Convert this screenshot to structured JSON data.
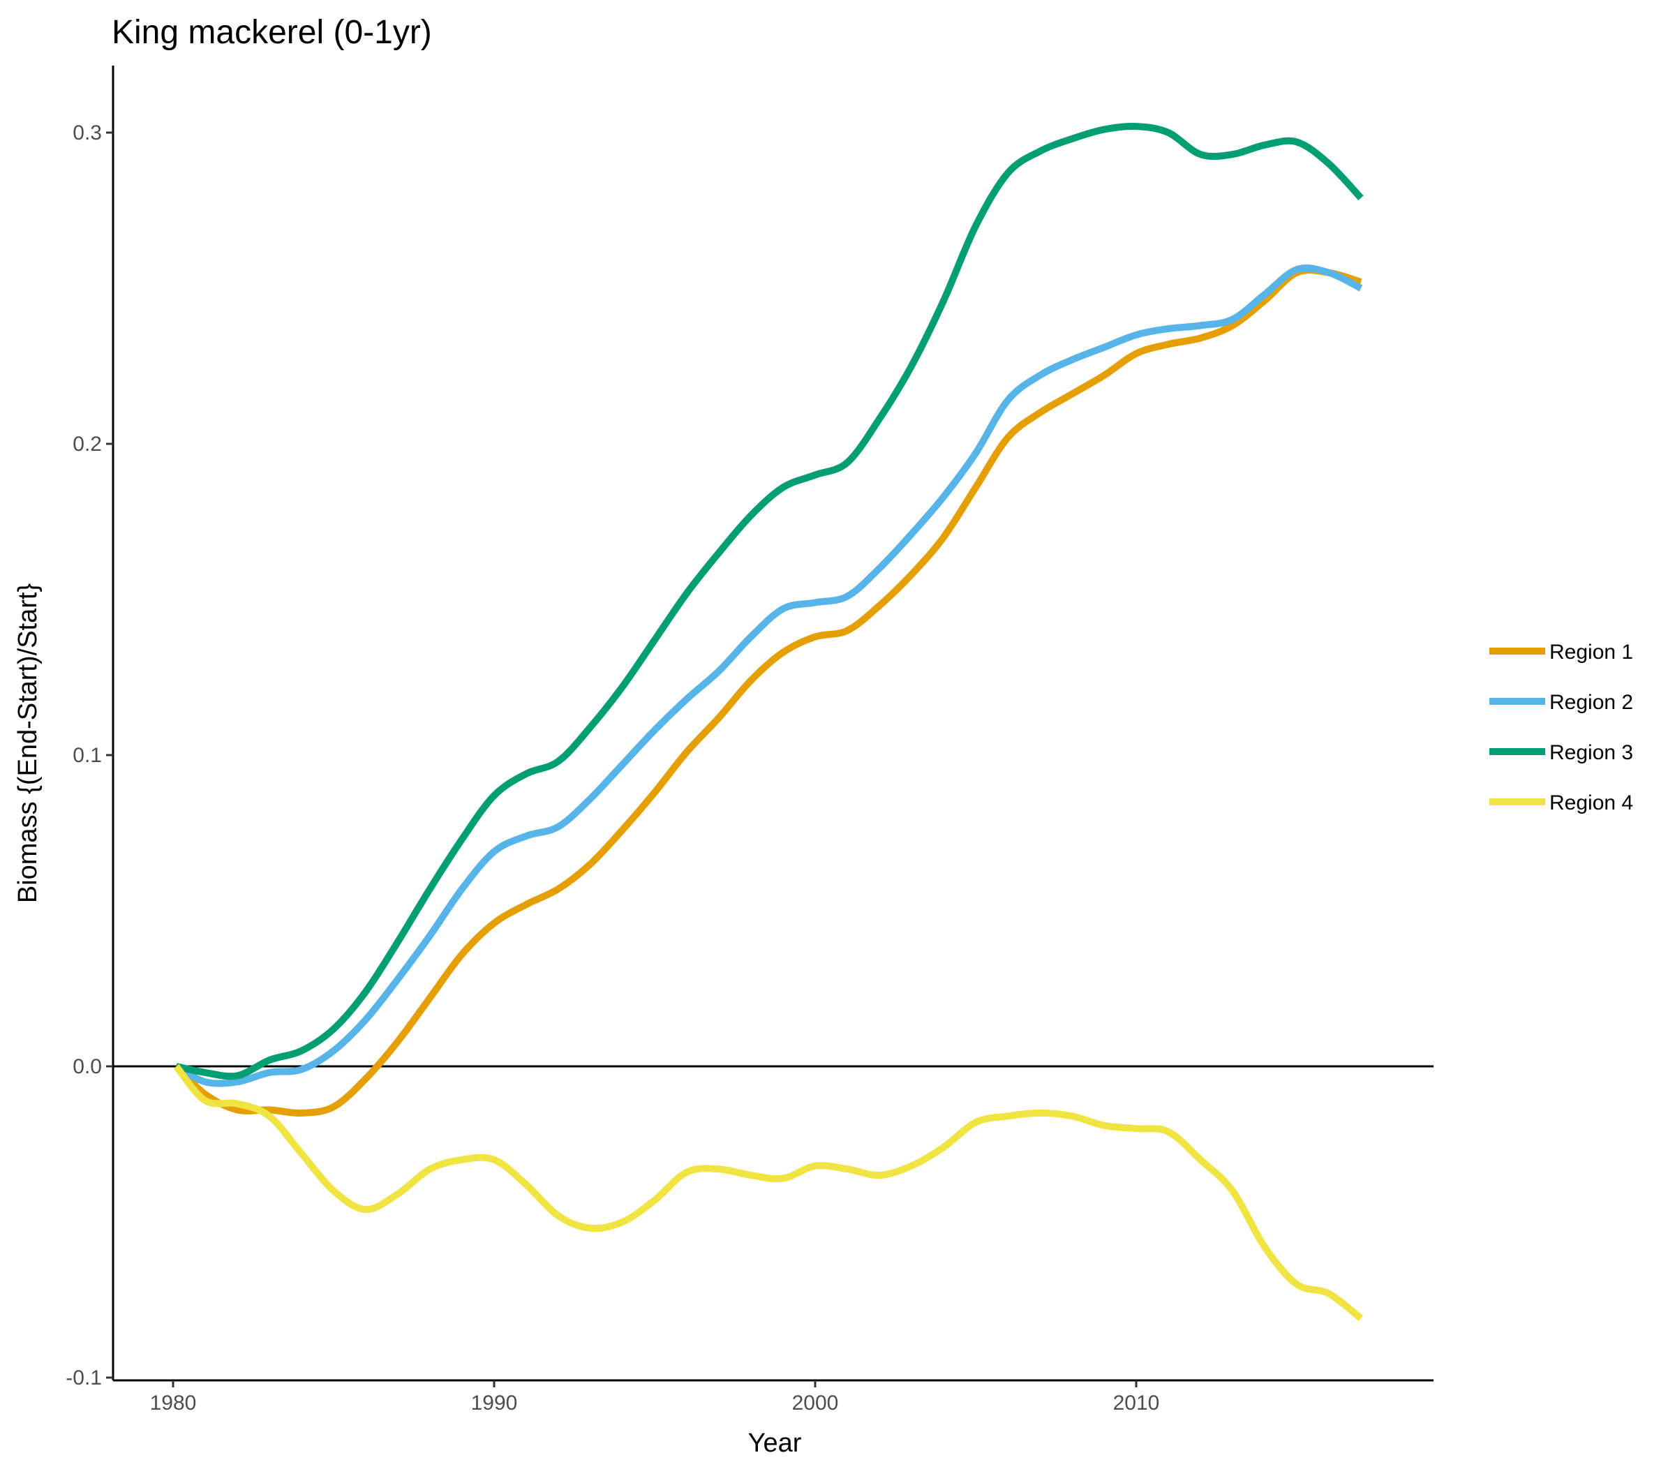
{
  "chart_data": {
    "type": "line",
    "title": "King mackerel (0-1yr)",
    "xlabel": "Year",
    "ylabel": "Biomass {(End-Start)/Start}",
    "xlim": [
      1978.2,
      2018.8
    ],
    "ylim": [
      -0.1,
      0.32
    ],
    "x_ticks": [
      "1980",
      "1990",
      "2000",
      "2010"
    ],
    "y_ticks": [
      "-0.1",
      "0.0",
      "0.1",
      "0.2",
      "0.3"
    ],
    "reference_line_y": 0,
    "grid": false,
    "legend_position": "right",
    "series": [
      {
        "name": "Region 1",
        "color": "#E69F00",
        "points": [
          [
            1980.1,
            0.0
          ],
          [
            1981,
            -0.009
          ],
          [
            1982,
            -0.014
          ],
          [
            1983,
            -0.014
          ],
          [
            1984,
            -0.015
          ],
          [
            1985,
            -0.013
          ],
          [
            1986,
            -0.004
          ],
          [
            1987,
            0.008
          ],
          [
            1988,
            0.022
          ],
          [
            1989,
            0.036
          ],
          [
            1990,
            0.046
          ],
          [
            1991,
            0.052
          ],
          [
            1992,
            0.057
          ],
          [
            1993,
            0.065
          ],
          [
            1994,
            0.076
          ],
          [
            1995,
            0.088
          ],
          [
            1996,
            0.101
          ],
          [
            1997,
            0.112
          ],
          [
            1998,
            0.124
          ],
          [
            1999,
            0.133
          ],
          [
            2000,
            0.138
          ],
          [
            2001,
            0.14
          ],
          [
            2002,
            0.148
          ],
          [
            2003,
            0.158
          ],
          [
            2004,
            0.17
          ],
          [
            2005,
            0.186
          ],
          [
            2006,
            0.202
          ],
          [
            2007,
            0.21
          ],
          [
            2008,
            0.216
          ],
          [
            2009,
            0.222
          ],
          [
            2010,
            0.229
          ],
          [
            2011,
            0.232
          ],
          [
            2012,
            0.234
          ],
          [
            2013,
            0.238
          ],
          [
            2014,
            0.246
          ],
          [
            2015,
            0.255
          ],
          [
            2016,
            0.255
          ],
          [
            2017,
            0.252
          ]
        ]
      },
      {
        "name": "Region 2",
        "color": "#56B4E9",
        "points": [
          [
            1980.1,
            0.0
          ],
          [
            1981,
            -0.005
          ],
          [
            1982,
            -0.005
          ],
          [
            1983,
            -0.002
          ],
          [
            1984,
            -0.001
          ],
          [
            1985,
            0.005
          ],
          [
            1986,
            0.015
          ],
          [
            1987,
            0.028
          ],
          [
            1988,
            0.042
          ],
          [
            1989,
            0.057
          ],
          [
            1990,
            0.069
          ],
          [
            1991,
            0.074
          ],
          [
            1992,
            0.077
          ],
          [
            1993,
            0.086
          ],
          [
            1994,
            0.097
          ],
          [
            1995,
            0.108
          ],
          [
            1996,
            0.118
          ],
          [
            1997,
            0.127
          ],
          [
            1998,
            0.138
          ],
          [
            1999,
            0.147
          ],
          [
            2000,
            0.149
          ],
          [
            2001,
            0.151
          ],
          [
            2002,
            0.16
          ],
          [
            2003,
            0.171
          ],
          [
            2004,
            0.183
          ],
          [
            2005,
            0.197
          ],
          [
            2006,
            0.214
          ],
          [
            2007,
            0.222
          ],
          [
            2008,
            0.227
          ],
          [
            2009,
            0.231
          ],
          [
            2010,
            0.235
          ],
          [
            2011,
            0.237
          ],
          [
            2012,
            0.238
          ],
          [
            2013,
            0.24
          ],
          [
            2014,
            0.248
          ],
          [
            2015,
            0.256
          ],
          [
            2016,
            0.255
          ],
          [
            2017,
            0.25
          ]
        ]
      },
      {
        "name": "Region 3",
        "color": "#009E73",
        "points": [
          [
            1980.1,
            0.0
          ],
          [
            1981,
            -0.002
          ],
          [
            1982,
            -0.003
          ],
          [
            1983,
            0.002
          ],
          [
            1984,
            0.005
          ],
          [
            1985,
            0.012
          ],
          [
            1986,
            0.024
          ],
          [
            1987,
            0.04
          ],
          [
            1988,
            0.057
          ],
          [
            1989,
            0.073
          ],
          [
            1990,
            0.087
          ],
          [
            1991,
            0.094
          ],
          [
            1992,
            0.098
          ],
          [
            1993,
            0.109
          ],
          [
            1994,
            0.122
          ],
          [
            1995,
            0.137
          ],
          [
            1996,
            0.152
          ],
          [
            1997,
            0.165
          ],
          [
            1998,
            0.177
          ],
          [
            1999,
            0.186
          ],
          [
            2000,
            0.19
          ],
          [
            2001,
            0.194
          ],
          [
            2002,
            0.208
          ],
          [
            2003,
            0.225
          ],
          [
            2004,
            0.246
          ],
          [
            2005,
            0.27
          ],
          [
            2006,
            0.287
          ],
          [
            2007,
            0.294
          ],
          [
            2008,
            0.298
          ],
          [
            2009,
            0.301
          ],
          [
            2010,
            0.302
          ],
          [
            2011,
            0.3
          ],
          [
            2012,
            0.293
          ],
          [
            2013,
            0.293
          ],
          [
            2014,
            0.296
          ],
          [
            2015,
            0.297
          ],
          [
            2016,
            0.29
          ],
          [
            2017,
            0.279
          ]
        ]
      },
      {
        "name": "Region 4",
        "color": "#F0E442",
        "points": [
          [
            1980.1,
            0.0
          ],
          [
            1981,
            -0.011
          ],
          [
            1982,
            -0.012
          ],
          [
            1983,
            -0.016
          ],
          [
            1984,
            -0.028
          ],
          [
            1985,
            -0.04
          ],
          [
            1986,
            -0.046
          ],
          [
            1987,
            -0.041
          ],
          [
            1988,
            -0.033
          ],
          [
            1989,
            -0.03
          ],
          [
            1990,
            -0.03
          ],
          [
            1991,
            -0.038
          ],
          [
            1992,
            -0.048
          ],
          [
            1993,
            -0.052
          ],
          [
            1994,
            -0.05
          ],
          [
            1995,
            -0.043
          ],
          [
            1996,
            -0.034
          ],
          [
            1997,
            -0.033
          ],
          [
            1998,
            -0.035
          ],
          [
            1999,
            -0.036
          ],
          [
            2000,
            -0.032
          ],
          [
            2001,
            -0.033
          ],
          [
            2002,
            -0.035
          ],
          [
            2003,
            -0.032
          ],
          [
            2004,
            -0.026
          ],
          [
            2005,
            -0.018
          ],
          [
            2006,
            -0.016
          ],
          [
            2007,
            -0.015
          ],
          [
            2008,
            -0.016
          ],
          [
            2009,
            -0.019
          ],
          [
            2010,
            -0.02
          ],
          [
            2011,
            -0.021
          ],
          [
            2012,
            -0.03
          ],
          [
            2013,
            -0.04
          ],
          [
            2014,
            -0.058
          ],
          [
            2015,
            -0.07
          ],
          [
            2016,
            -0.073
          ],
          [
            2017,
            -0.081
          ]
        ]
      }
    ]
  }
}
